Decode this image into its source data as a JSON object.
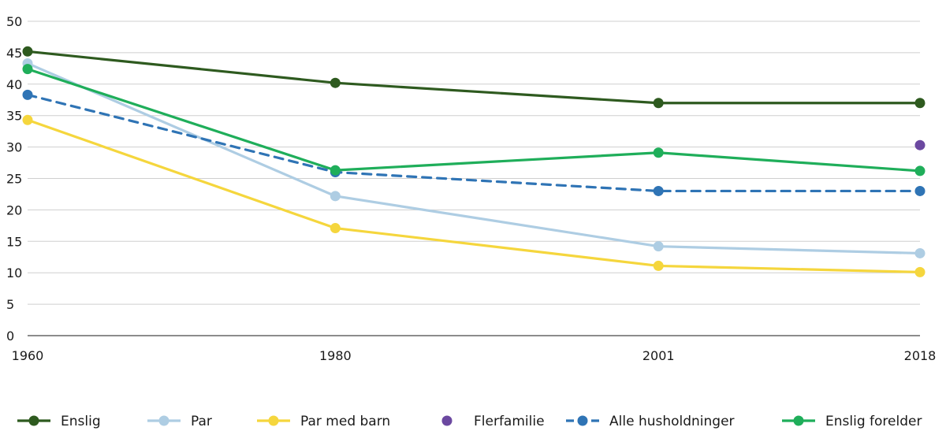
{
  "chart_data": {
    "type": "line",
    "title": "",
    "xlabel": "",
    "ylabel": "",
    "x": [
      1960,
      1980,
      2001,
      2018
    ],
    "x_tick_labels": [
      "1960",
      "1980",
      "2001",
      "2018"
    ],
    "ylim": [
      0,
      50
    ],
    "y_ticks": [
      "0",
      "5",
      "10",
      "15",
      "20",
      "25",
      "30",
      "35",
      "40",
      "45",
      "50"
    ],
    "grid": true,
    "legend_position": "bottom",
    "series": [
      {
        "name": "Enslig",
        "color": "#2e5a1f",
        "dashed": false,
        "values": [
          45.2,
          40.2,
          37.0,
          37.0
        ]
      },
      {
        "name": "Par",
        "color": "#aecde3",
        "dashed": false,
        "values": [
          43.3,
          22.2,
          14.2,
          13.1
        ]
      },
      {
        "name": "Par med barn",
        "color": "#f5d63d",
        "dashed": false,
        "values": [
          34.3,
          17.1,
          11.1,
          10.1
        ]
      },
      {
        "name": "Flerfamilie",
        "color": "#6b48a0",
        "dashed": false,
        "values": [
          null,
          null,
          null,
          30.3
        ]
      },
      {
        "name": "Alle husholdninger",
        "color": "#2f74b5",
        "dashed": true,
        "values": [
          38.3,
          26.0,
          23.0,
          23.0
        ]
      },
      {
        "name": "Enslig forelder",
        "color": "#1fae5a",
        "dashed": false,
        "values": [
          42.4,
          26.3,
          29.1,
          26.2
        ]
      }
    ]
  }
}
